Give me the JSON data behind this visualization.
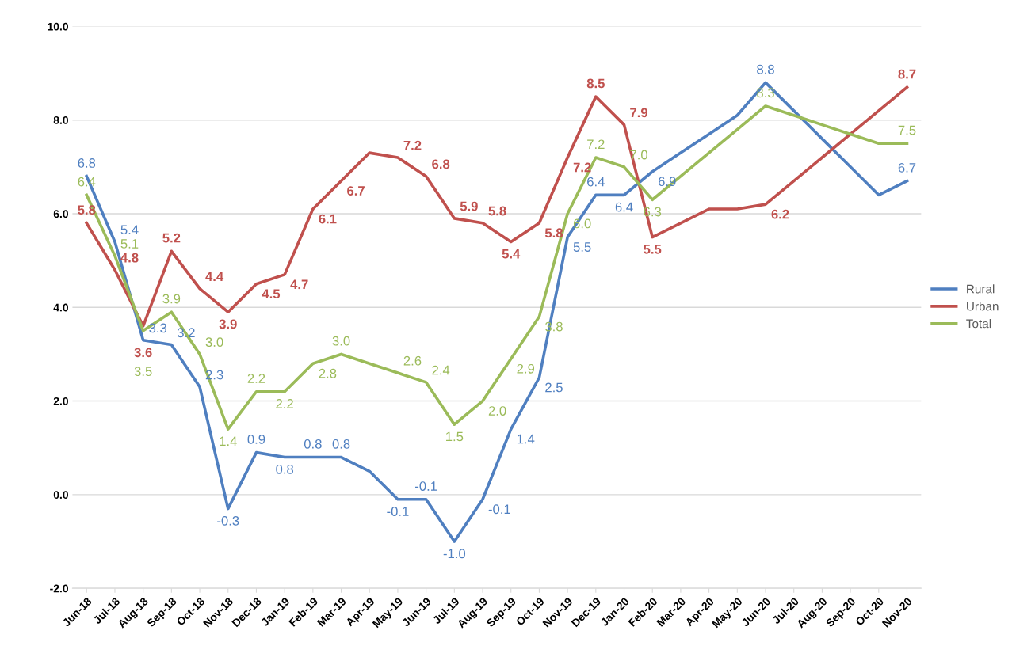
{
  "chart_data": {
    "type": "line",
    "categories": [
      "Jun-18",
      "Jul-18",
      "Aug-18",
      "Sep-18",
      "Oct-18",
      "Nov-18",
      "Dec-18",
      "Jan-19",
      "Feb-19",
      "Mar-19",
      "Apr-19",
      "May-19",
      "Jun-19",
      "Jul-19",
      "Aug-19",
      "Sep-19",
      "Oct-19",
      "Nov-19",
      "Dec-19",
      "Jan-20",
      "Feb-20",
      "Mar-20",
      "Apr-20",
      "May-20",
      "Jun-20",
      "Jul-20",
      "Aug-20",
      "Sep-20",
      "Oct-20",
      "Nov-20"
    ],
    "series": [
      {
        "name": "Rural",
        "color": "#4f7fc0",
        "values": [
          6.8,
          5.4,
          3.3,
          3.2,
          2.3,
          -0.3,
          0.9,
          0.8,
          0.8,
          0.8,
          0.5,
          -0.1,
          -0.1,
          -1.0,
          -0.1,
          1.4,
          2.5,
          5.5,
          6.4,
          6.4,
          6.9,
          7.3,
          7.7,
          8.1,
          8.8,
          8.2,
          7.6,
          7.0,
          6.4,
          6.7
        ],
        "value_labels": [
          "6.8",
          "5.4",
          "3.3",
          "3.2",
          "2.3",
          "-0.3",
          "0.9",
          "0.8",
          "0.8",
          "0.8",
          null,
          "-0.1",
          "-0.1",
          "-1.0",
          "-0.1",
          "1.4",
          "2.5",
          "5.5",
          "6.4",
          "6.4",
          "6.9",
          null,
          null,
          null,
          "8.8",
          null,
          null,
          null,
          null,
          "6.7"
        ]
      },
      {
        "name": "Urban",
        "color": "#c0504d",
        "values": [
          5.8,
          4.8,
          3.6,
          5.2,
          4.4,
          3.9,
          4.5,
          4.7,
          6.1,
          6.7,
          7.3,
          7.2,
          6.8,
          5.9,
          5.8,
          5.4,
          5.8,
          7.2,
          8.5,
          7.9,
          5.5,
          5.8,
          6.1,
          6.1,
          6.2,
          6.7,
          7.2,
          7.7,
          8.2,
          8.7
        ],
        "value_labels": [
          "5.8",
          "4.8",
          "3.6",
          "5.2",
          "4.4",
          "3.9",
          "4.5",
          "4.7",
          "6.1",
          "6.7",
          null,
          "7.2",
          "6.8",
          "5.9",
          "5.8",
          "5.4",
          "5.8",
          "7.2",
          "8.5",
          "7.9",
          "5.5",
          null,
          null,
          null,
          "6.2",
          null,
          null,
          null,
          null,
          "8.7"
        ]
      },
      {
        "name": "Total",
        "color": "#9bbb59",
        "values": [
          6.4,
          5.1,
          3.5,
          3.9,
          3.0,
          1.4,
          2.2,
          2.2,
          2.8,
          3.0,
          2.8,
          2.6,
          2.4,
          1.5,
          2.0,
          2.9,
          3.8,
          6.0,
          7.2,
          7.0,
          6.3,
          6.8,
          7.3,
          7.8,
          8.3,
          8.1,
          7.9,
          7.7,
          7.5,
          7.5
        ],
        "value_labels": [
          "6.4",
          "5.1",
          "3.5",
          "3.9",
          "3.0",
          "1.4",
          "2.2",
          "2.2",
          "2.8",
          "3.0",
          null,
          "2.6",
          "2.4",
          "1.5",
          "2.0",
          "2.9",
          "3.8",
          "6.0",
          "7.2",
          "7.0",
          "6.3",
          null,
          null,
          null,
          "8.3",
          null,
          null,
          null,
          null,
          "7.5"
        ]
      }
    ],
    "ylim": [
      -2,
      10
    ],
    "yticks": [
      {
        "value": -2,
        "label": "-2.0"
      },
      {
        "value": 0,
        "label": "0.0"
      },
      {
        "value": 2,
        "label": "2.0"
      },
      {
        "value": 4,
        "label": "4.0"
      },
      {
        "value": 6,
        "label": "6.0"
      },
      {
        "value": 8,
        "label": "8.0"
      },
      {
        "value": 10,
        "label": "10.0"
      }
    ],
    "grid": "y",
    "legend": "right",
    "marker": "none",
    "line_style": "solid"
  }
}
